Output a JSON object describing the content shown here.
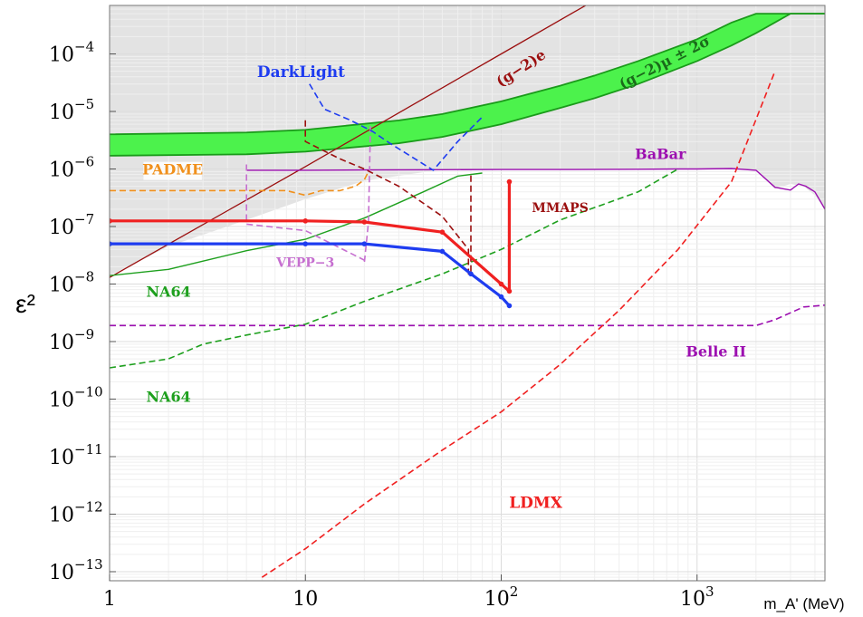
{
  "chart_data": {
    "type": "line",
    "xscale": "log",
    "yscale": "log",
    "xlim": [
      1,
      4500
    ],
    "ylim": [
      1e-13,
      0.0001
    ],
    "xlabel": "m_A' (MeV)",
    "ylabel": "ε²",
    "x_ticks": [
      {
        "value": 1,
        "base": "1",
        "exp": ""
      },
      {
        "value": 10,
        "base": "10",
        "exp": ""
      },
      {
        "value": 100,
        "base": "10",
        "exp": "2"
      },
      {
        "value": 1000,
        "base": "10",
        "exp": "3"
      }
    ],
    "y_ticks": [
      {
        "value": 0.0001,
        "base": "10",
        "exp": "−4"
      },
      {
        "value": 1e-05,
        "base": "10",
        "exp": "−5"
      },
      {
        "value": 1e-06,
        "base": "10",
        "exp": "−6"
      },
      {
        "value": 1e-07,
        "base": "10",
        "exp": "−7"
      },
      {
        "value": 1e-08,
        "base": "10",
        "exp": "−8"
      },
      {
        "value": 1e-09,
        "base": "10",
        "exp": "−9"
      },
      {
        "value": 1e-10,
        "base": "10",
        "exp": "−10"
      },
      {
        "value": 1e-11,
        "base": "10",
        "exp": "−11"
      },
      {
        "value": 1e-12,
        "base": "10",
        "exp": "−12"
      },
      {
        "value": 1e-13,
        "base": "10",
        "exp": "−13"
      }
    ],
    "grid": true,
    "colors": {
      "excluded_region": "#e3e3e3",
      "g2mu_band": "#4cf24c",
      "g2mu_border": "#1a9a1a"
    },
    "excluded_region": {
      "x": [
        1,
        2,
        5,
        10,
        20,
        50,
        100,
        200,
        500,
        1000,
        1500,
        2000,
        2500,
        3000,
        3500,
        4000,
        4500
      ],
      "y": [
        1.4e-08,
        4.5e-08,
        1.3e-07,
        3e-07,
        6.2e-07,
        9.8e-07,
        1e-06,
        1e-06,
        1e-06,
        1e-06,
        1e-06,
        9.5e-07,
        4.5e-07,
        5.5e-07,
        5e-07,
        3.5e-07,
        2e-07
      ]
    },
    "g2mu_band": {
      "x": [
        1,
        5,
        10,
        30,
        50,
        100,
        200,
        300,
        500,
        1000,
        1500,
        2000,
        3000,
        4500
      ],
      "upper": [
        4e-06,
        4.3e-06,
        4.8e-06,
        7e-06,
        9e-06,
        1.5e-05,
        2.8e-05,
        4.2e-05,
        7.5e-05,
        0.00018,
        0.00035,
        0.0005,
        0.0005,
        0.0005
      ],
      "lower": [
        1.7e-06,
        1.8e-06,
        2e-06,
        2.8e-06,
        3.6e-06,
        6e-06,
        1.15e-05,
        1.7e-05,
        3e-05,
        7.5e-05,
        0.00014,
        0.00023,
        0.0005,
        0.0005
      ]
    },
    "series": [
      {
        "name": "(g−2)e",
        "color": "#9b0f0f",
        "style": "solid",
        "width": 1.3,
        "x": [
          1,
          10,
          100,
          1000
        ],
        "y": [
          1.3e-08,
          1.1e-06,
          0.0001,
          0.009
        ]
      },
      {
        "name": "BaBar",
        "color": "#9c0fb0",
        "style": "solid",
        "width": 1.4,
        "x": [
          5,
          10,
          20,
          50,
          100,
          200,
          500,
          800,
          1000,
          1500,
          2000,
          2500,
          3000,
          3300,
          3600,
          4000,
          4500
        ],
        "y": [
          9.5e-07,
          9.5e-07,
          9.6e-07,
          9.7e-07,
          9.8e-07,
          9.8e-07,
          9.9e-07,
          1e-06,
          1e-06,
          1.02e-06,
          9.5e-07,
          4.8e-07,
          4.3e-07,
          5.5e-07,
          5e-07,
          4e-07,
          2e-07
        ]
      },
      {
        "name": "NA64",
        "color": "#1ea01e",
        "style": "solid",
        "width": 1.4,
        "x": [
          1,
          2,
          3,
          5,
          10,
          20,
          40,
          60,
          80
        ],
        "y": [
          1.4e-08,
          1.8e-08,
          2.5e-08,
          3.8e-08,
          6e-08,
          1.4e-07,
          4e-07,
          7.5e-07,
          8.5e-07
        ]
      },
      {
        "name": "NA64",
        "color": "#1ea01e",
        "style": "dashed",
        "width": 1.6,
        "x": [
          1,
          2,
          3,
          5,
          10,
          20,
          50,
          100,
          200,
          500,
          800
        ],
        "y": [
          3.5e-10,
          5e-10,
          9e-10,
          1.3e-09,
          2e-09,
          5e-09,
          1.5e-08,
          4e-08,
          1.3e-07,
          4e-07,
          1e-06
        ]
      },
      {
        "name": "PADME",
        "color": "#f0901c",
        "style": "dashed",
        "width": 1.6,
        "x": [
          1,
          3,
          5,
          8,
          10,
          12,
          15,
          18,
          20,
          21
        ],
        "y": [
          4.2e-07,
          4.2e-07,
          4.2e-07,
          4.2e-07,
          3.5e-07,
          4.2e-07,
          4.2e-07,
          5e-07,
          6.5e-07,
          9e-07
        ]
      },
      {
        "name": "VEPP−3",
        "color": "#c66fd0",
        "style": "dashed",
        "width": 1.6,
        "x": [
          5,
          5,
          10,
          20,
          20,
          21,
          21.5
        ],
        "y": [
          1.2e-06,
          1.1e-07,
          8.5e-08,
          2.6e-08,
          2.3e-08,
          1.2e-07,
          5.8e-06
        ]
      },
      {
        "name": "DarkLight",
        "color": "#1e3cf0",
        "style": "dashed",
        "width": 1.6,
        "x": [
          10.5,
          12.5,
          17,
          22,
          27,
          45,
          60,
          80
        ],
        "y": [
          3e-05,
          1.1e-05,
          7e-06,
          4.5e-06,
          2.8e-06,
          9.5e-07,
          3e-06,
          8e-06
        ]
      },
      {
        "name": "MMAPS",
        "color": "#9b0f0f",
        "style": "dashed",
        "width": 1.6,
        "x": [
          10,
          10,
          15,
          20,
          30,
          50,
          68,
          68,
          70,
          70
        ],
        "y": [
          7e-06,
          3e-06,
          1.5e-06,
          1e-06,
          5e-07,
          1.5e-07,
          4e-08,
          1.5e-08,
          1.5e-08,
          8e-07
        ]
      },
      {
        "name": "Belle II",
        "color": "#9c0fb0",
        "style": "dashed",
        "width": 1.6,
        "x": [
          1,
          100,
          1000,
          2000,
          2500,
          3500,
          4500
        ],
        "y": [
          1.9e-09,
          1.9e-09,
          1.9e-09,
          1.9e-09,
          2.4e-09,
          4e-09,
          4.3e-09
        ]
      },
      {
        "name": "LDMX",
        "color": "#f02020",
        "style": "dashed",
        "width": 1.6,
        "x": [
          6,
          10,
          20,
          50,
          100,
          200,
          400,
          800,
          1500,
          2500
        ],
        "y": [
          8e-14,
          2.5e-13,
          1.5e-12,
          1.3e-11,
          6e-11,
          4e-10,
          3.5e-09,
          4e-08,
          6e-07,
          5e-05
        ]
      },
      {
        "name": "",
        "color": "#f02020",
        "style": "solid",
        "width": 3.2,
        "markers": true,
        "x": [
          1,
          10,
          20,
          50,
          100,
          110,
          110
        ],
        "y": [
          1.25e-07,
          1.25e-07,
          1.2e-07,
          8e-08,
          1e-08,
          7.5e-09,
          6e-07
        ]
      },
      {
        "name": "",
        "color": "#1e3cf0",
        "style": "solid",
        "width": 3.2,
        "markers": true,
        "x": [
          1,
          10,
          20,
          50,
          70,
          100,
          110
        ],
        "y": [
          5e-08,
          5e-08,
          5e-08,
          3.7e-08,
          1.5e-08,
          6e-09,
          4.2e-09
        ]
      }
    ],
    "annotations": [
      {
        "text": "DarkLight",
        "color": "#1e3cf0",
        "x": 9.5,
        "y": 4e-05,
        "size": 17,
        "anchor": "middle"
      },
      {
        "text": "BaBar",
        "color": "#9c0fb0",
        "x": 650,
        "y": 1.5e-06,
        "size": 16,
        "anchor": "middle"
      },
      {
        "text": "PADME",
        "color": "#f0901c",
        "x": 2.1,
        "y": 8e-07,
        "size": 16,
        "anchor": "middle",
        "box": true
      },
      {
        "text": "MMAPS",
        "color": "#9b0f0f",
        "x": 200,
        "y": 1.8e-07,
        "size": 14,
        "anchor": "middle"
      },
      {
        "text": "VEPP−3",
        "color": "#c66fd0",
        "x": 10,
        "y": 2e-08,
        "size": 14,
        "anchor": "middle"
      },
      {
        "text": "NA64",
        "color": "#1ea01e",
        "x": 2.0,
        "y": 6e-09,
        "size": 16,
        "anchor": "middle"
      },
      {
        "text": "NA64",
        "color": "#1ea01e",
        "x": 2.0,
        "y": 9e-11,
        "size": 16,
        "anchor": "middle"
      },
      {
        "text": "Belle II",
        "color": "#9c0fb0",
        "x": 1250,
        "y": 5.5e-10,
        "size": 16,
        "anchor": "middle"
      },
      {
        "text": "LDMX",
        "color": "#f02020",
        "x": 150,
        "y": 1.3e-12,
        "size": 17,
        "anchor": "middle"
      },
      {
        "text": "(g−2)e",
        "color": "#9b0f0f",
        "x": 130,
        "y": 4.8e-05,
        "size": 16,
        "anchor": "middle",
        "rotate": -33
      },
      {
        "text": "(g−2)μ ± 2σ",
        "color": "#1a6a1a",
        "x": 700,
        "y": 6e-05,
        "size": 16,
        "anchor": "middle",
        "rotate": -27
      }
    ]
  }
}
